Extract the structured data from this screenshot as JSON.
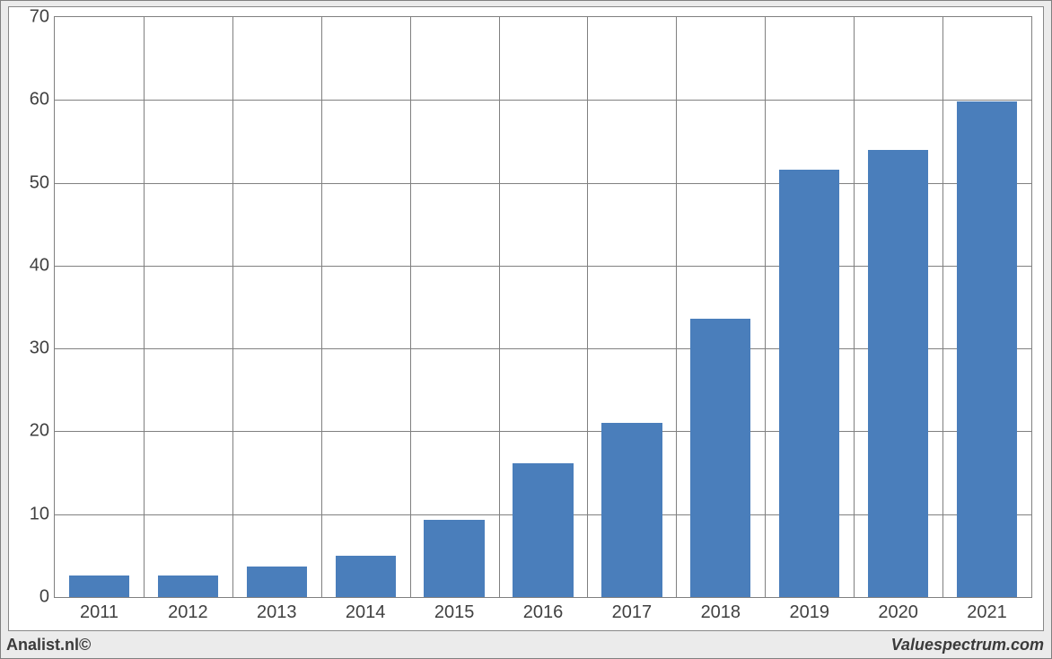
{
  "chart": {
    "type": "bar",
    "categories": [
      "2011",
      "2012",
      "2013",
      "2014",
      "2015",
      "2016",
      "2017",
      "2018",
      "2019",
      "2020",
      "2021"
    ],
    "values": [
      2.6,
      2.6,
      3.7,
      5.0,
      9.3,
      16.1,
      21.0,
      33.6,
      51.6,
      54.0,
      59.8
    ],
    "bar_color": "#4a7ebb",
    "ylim_min": 0,
    "ylim_max": 70,
    "ytick_step": 10,
    "yticks": [
      0,
      10,
      20,
      30,
      40,
      50,
      60,
      70
    ],
    "grid_color": "#808080",
    "background_color": "#ffffff",
    "frame_background": "#ebebeb",
    "bar_width_ratio": 0.68,
    "tick_fontsize": 20,
    "tick_color": "#404040"
  },
  "footer": {
    "left": "Analist.nl©",
    "right": "Valuespectrum.com",
    "fontsize": 18,
    "color": "#3b3b3b"
  }
}
